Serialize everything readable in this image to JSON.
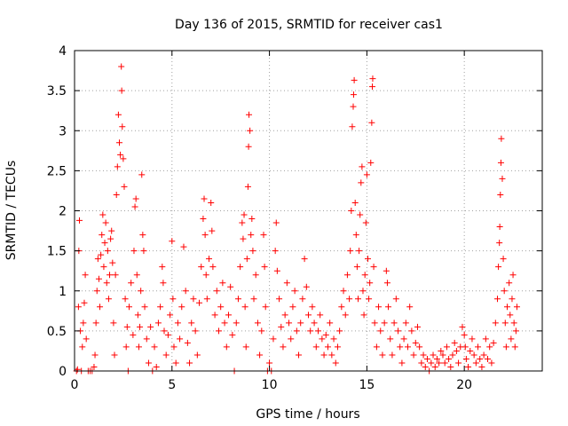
{
  "chart_data": {
    "type": "scatter",
    "title": "Day 136 of 2015, SRMTID for receiver cas1",
    "xlabel": "GPS time / hours",
    "ylabel": "SRMTID / TECUs",
    "xlim": [
      0,
      24
    ],
    "ylim": [
      0,
      4
    ],
    "xticks": [
      0,
      5,
      10,
      15,
      20
    ],
    "yticks": [
      0,
      0.5,
      1,
      1.5,
      2,
      2.5,
      3,
      3.5,
      4
    ],
    "xtick_labels": [
      "0",
      "5",
      "10",
      "15",
      "20"
    ],
    "ytick_labels": [
      "0",
      "0.5",
      "1",
      "1.5",
      "2",
      "2.5",
      "3",
      "3.5",
      "4"
    ],
    "grid": true,
    "marker": "plus",
    "color": "#ff0000",
    "series": [
      {
        "name": "SRMTID",
        "points": [
          [
            0.1,
            0.0
          ],
          [
            0.15,
            0.02
          ],
          [
            0.2,
            0.8
          ],
          [
            0.22,
            1.5
          ],
          [
            0.25,
            1.88
          ],
          [
            0.3,
            0.5
          ],
          [
            0.35,
            0.0
          ],
          [
            0.4,
            0.3
          ],
          [
            0.45,
            0.6
          ],
          [
            0.5,
            0.85
          ],
          [
            0.55,
            1.2
          ],
          [
            0.6,
            0.4
          ],
          [
            0.7,
            0.0
          ],
          [
            0.8,
            0.0
          ],
          [
            0.9,
            0.0
          ],
          [
            1.0,
            0.05
          ],
          [
            1.05,
            0.2
          ],
          [
            1.1,
            0.6
          ],
          [
            1.15,
            1.0
          ],
          [
            1.2,
            1.4
          ],
          [
            1.25,
            1.15
          ],
          [
            1.3,
            0.8
          ],
          [
            1.35,
            1.45
          ],
          [
            1.4,
            1.7
          ],
          [
            1.45,
            1.95
          ],
          [
            1.5,
            1.3
          ],
          [
            1.55,
            1.6
          ],
          [
            1.6,
            1.85
          ],
          [
            1.65,
            1.1
          ],
          [
            1.7,
            1.5
          ],
          [
            1.75,
            0.9
          ],
          [
            1.8,
            1.2
          ],
          [
            1.85,
            1.65
          ],
          [
            1.9,
            1.75
          ],
          [
            1.95,
            1.35
          ],
          [
            2.0,
            0.6
          ],
          [
            2.05,
            0.2
          ],
          [
            2.1,
            1.2
          ],
          [
            2.15,
            2.2
          ],
          [
            2.2,
            2.55
          ],
          [
            2.25,
            3.2
          ],
          [
            2.3,
            2.85
          ],
          [
            2.35,
            2.7
          ],
          [
            2.4,
            3.8
          ],
          [
            2.42,
            3.5
          ],
          [
            2.45,
            3.05
          ],
          [
            2.5,
            2.65
          ],
          [
            2.55,
            2.3
          ],
          [
            2.6,
            0.9
          ],
          [
            2.65,
            0.3
          ],
          [
            2.7,
            0.55
          ],
          [
            2.75,
            0.0
          ],
          [
            2.8,
            0.8
          ],
          [
            2.9,
            1.1
          ],
          [
            3.0,
            0.45
          ],
          [
            3.05,
            1.5
          ],
          [
            3.1,
            2.05
          ],
          [
            3.15,
            2.15
          ],
          [
            3.2,
            1.2
          ],
          [
            3.25,
            0.7
          ],
          [
            3.3,
            0.3
          ],
          [
            3.35,
            0.55
          ],
          [
            3.4,
            1.0
          ],
          [
            3.45,
            2.45
          ],
          [
            3.5,
            1.7
          ],
          [
            3.55,
            1.5
          ],
          [
            3.6,
            0.8
          ],
          [
            3.7,
            0.4
          ],
          [
            3.8,
            0.1
          ],
          [
            3.9,
            0.55
          ],
          [
            4.0,
            0.0
          ],
          [
            4.1,
            0.3
          ],
          [
            4.2,
            0.05
          ],
          [
            4.3,
            0.6
          ],
          [
            4.4,
            0.8
          ],
          [
            4.5,
            1.3
          ],
          [
            4.55,
            1.1
          ],
          [
            4.6,
            0.5
          ],
          [
            4.7,
            0.2
          ],
          [
            4.8,
            0.45
          ],
          [
            4.9,
            0.7
          ],
          [
            5.0,
            1.62
          ],
          [
            5.05,
            0.9
          ],
          [
            5.1,
            0.3
          ],
          [
            5.2,
            0.1
          ],
          [
            5.3,
            0.6
          ],
          [
            5.4,
            0.4
          ],
          [
            5.5,
            0.8
          ],
          [
            5.6,
            1.55
          ],
          [
            5.7,
            1.0
          ],
          [
            5.8,
            0.35
          ],
          [
            5.9,
            0.1
          ],
          [
            6.0,
            0.6
          ],
          [
            6.1,
            0.9
          ],
          [
            6.2,
            0.5
          ],
          [
            6.3,
            0.2
          ],
          [
            6.4,
            0.85
          ],
          [
            6.5,
            1.3
          ],
          [
            6.6,
            1.9
          ],
          [
            6.65,
            2.15
          ],
          [
            6.7,
            1.7
          ],
          [
            6.75,
            1.2
          ],
          [
            6.8,
            0.9
          ],
          [
            6.9,
            1.4
          ],
          [
            7.0,
            2.1
          ],
          [
            7.05,
            1.75
          ],
          [
            7.1,
            1.3
          ],
          [
            7.2,
            0.7
          ],
          [
            7.3,
            1.0
          ],
          [
            7.4,
            0.5
          ],
          [
            7.5,
            0.8
          ],
          [
            7.6,
            1.1
          ],
          [
            7.7,
            0.6
          ],
          [
            7.8,
            0.3
          ],
          [
            7.9,
            0.7
          ],
          [
            8.0,
            1.05
          ],
          [
            8.1,
            0.45
          ],
          [
            8.2,
            0.0
          ],
          [
            8.3,
            0.6
          ],
          [
            8.4,
            0.9
          ],
          [
            8.5,
            1.3
          ],
          [
            8.6,
            1.85
          ],
          [
            8.65,
            1.65
          ],
          [
            8.7,
            1.95
          ],
          [
            8.75,
            0.8
          ],
          [
            8.8,
            0.3
          ],
          [
            8.85,
            1.4
          ],
          [
            8.9,
            2.3
          ],
          [
            8.93,
            2.8
          ],
          [
            8.95,
            3.2
          ],
          [
            9.0,
            3.0
          ],
          [
            9.05,
            1.7
          ],
          [
            9.1,
            1.9
          ],
          [
            9.15,
            1.5
          ],
          [
            9.2,
            0.9
          ],
          [
            9.3,
            1.2
          ],
          [
            9.4,
            0.6
          ],
          [
            9.5,
            0.2
          ],
          [
            9.6,
            0.5
          ],
          [
            9.7,
            1.7
          ],
          [
            9.75,
            1.3
          ],
          [
            9.8,
            0.8
          ],
          [
            9.9,
            0.0
          ],
          [
            10.0,
            0.1
          ],
          [
            10.1,
            0.0
          ],
          [
            10.2,
            0.4
          ],
          [
            10.3,
            1.5
          ],
          [
            10.35,
            1.85
          ],
          [
            10.4,
            1.25
          ],
          [
            10.5,
            0.9
          ],
          [
            10.6,
            0.55
          ],
          [
            10.7,
            0.3
          ],
          [
            10.8,
            0.7
          ],
          [
            10.9,
            1.1
          ],
          [
            11.0,
            0.6
          ],
          [
            11.1,
            0.4
          ],
          [
            11.2,
            0.8
          ],
          [
            11.3,
            1.0
          ],
          [
            11.4,
            0.5
          ],
          [
            11.5,
            0.2
          ],
          [
            11.6,
            0.6
          ],
          [
            11.7,
            0.9
          ],
          [
            11.8,
            1.4
          ],
          [
            11.9,
            1.05
          ],
          [
            12.0,
            0.7
          ],
          [
            12.1,
            0.5
          ],
          [
            12.2,
            0.8
          ],
          [
            12.3,
            0.6
          ],
          [
            12.4,
            0.3
          ],
          [
            12.5,
            0.5
          ],
          [
            12.6,
            0.7
          ],
          [
            12.7,
            0.4
          ],
          [
            12.8,
            0.2
          ],
          [
            12.9,
            0.45
          ],
          [
            13.0,
            0.3
          ],
          [
            13.1,
            0.6
          ],
          [
            13.2,
            0.2
          ],
          [
            13.3,
            0.4
          ],
          [
            13.4,
            0.1
          ],
          [
            13.5,
            0.3
          ],
          [
            13.6,
            0.5
          ],
          [
            13.7,
            0.8
          ],
          [
            13.8,
            1.0
          ],
          [
            13.9,
            0.7
          ],
          [
            14.0,
            1.2
          ],
          [
            14.1,
            0.9
          ],
          [
            14.15,
            1.5
          ],
          [
            14.2,
            2.0
          ],
          [
            14.25,
            3.05
          ],
          [
            14.3,
            3.3
          ],
          [
            14.32,
            3.45
          ],
          [
            14.35,
            3.63
          ],
          [
            14.4,
            2.1
          ],
          [
            14.45,
            1.7
          ],
          [
            14.5,
            1.3
          ],
          [
            14.55,
            0.9
          ],
          [
            14.6,
            1.5
          ],
          [
            14.65,
            1.95
          ],
          [
            14.7,
            2.35
          ],
          [
            14.75,
            2.55
          ],
          [
            14.8,
            1.0
          ],
          [
            14.85,
            0.7
          ],
          [
            14.9,
            1.2
          ],
          [
            14.95,
            1.85
          ],
          [
            15.0,
            2.45
          ],
          [
            15.05,
            1.4
          ],
          [
            15.1,
            0.9
          ],
          [
            15.15,
            1.1
          ],
          [
            15.2,
            2.6
          ],
          [
            15.25,
            3.1
          ],
          [
            15.28,
            3.55
          ],
          [
            15.3,
            3.65
          ],
          [
            15.35,
            1.3
          ],
          [
            15.4,
            0.6
          ],
          [
            15.5,
            0.3
          ],
          [
            15.6,
            0.8
          ],
          [
            15.7,
            0.5
          ],
          [
            15.8,
            0.2
          ],
          [
            15.9,
            0.6
          ],
          [
            16.0,
            1.25
          ],
          [
            16.05,
            1.1
          ],
          [
            16.1,
            0.8
          ],
          [
            16.2,
            0.4
          ],
          [
            16.3,
            0.2
          ],
          [
            16.4,
            0.6
          ],
          [
            16.5,
            0.9
          ],
          [
            16.6,
            0.5
          ],
          [
            16.7,
            0.3
          ],
          [
            16.8,
            0.1
          ],
          [
            16.9,
            0.4
          ],
          [
            17.0,
            0.6
          ],
          [
            17.1,
            0.3
          ],
          [
            17.2,
            0.8
          ],
          [
            17.3,
            0.5
          ],
          [
            17.4,
            0.2
          ],
          [
            17.5,
            0.35
          ],
          [
            17.6,
            0.55
          ],
          [
            17.7,
            0.3
          ],
          [
            17.8,
            0.1
          ],
          [
            17.9,
            0.2
          ],
          [
            18.0,
            0.05
          ],
          [
            18.1,
            0.15
          ],
          [
            18.2,
            0.0
          ],
          [
            18.3,
            0.1
          ],
          [
            18.4,
            0.2
          ],
          [
            18.5,
            0.05
          ],
          [
            18.6,
            0.15
          ],
          [
            18.7,
            0.1
          ],
          [
            18.8,
            0.25
          ],
          [
            18.9,
            0.2
          ],
          [
            19.0,
            0.1
          ],
          [
            19.1,
            0.3
          ],
          [
            19.2,
            0.15
          ],
          [
            19.3,
            0.05
          ],
          [
            19.4,
            0.2
          ],
          [
            19.5,
            0.35
          ],
          [
            19.6,
            0.25
          ],
          [
            19.7,
            0.1
          ],
          [
            19.8,
            0.3
          ],
          [
            19.9,
            0.55
          ],
          [
            20.0,
            0.45
          ],
          [
            20.05,
            0.3
          ],
          [
            20.1,
            0.15
          ],
          [
            20.2,
            0.05
          ],
          [
            20.3,
            0.25
          ],
          [
            20.4,
            0.4
          ],
          [
            20.5,
            0.2
          ],
          [
            20.6,
            0.1
          ],
          [
            20.7,
            0.3
          ],
          [
            20.8,
            0.15
          ],
          [
            20.9,
            0.05
          ],
          [
            21.0,
            0.2
          ],
          [
            21.1,
            0.4
          ],
          [
            21.2,
            0.15
          ],
          [
            21.3,
            0.3
          ],
          [
            21.4,
            0.1
          ],
          [
            21.5,
            0.35
          ],
          [
            21.6,
            0.6
          ],
          [
            21.7,
            0.9
          ],
          [
            21.75,
            1.3
          ],
          [
            21.8,
            1.6
          ],
          [
            21.82,
            1.8
          ],
          [
            21.85,
            2.2
          ],
          [
            21.88,
            2.6
          ],
          [
            21.9,
            2.9
          ],
          [
            21.95,
            2.4
          ],
          [
            22.0,
            1.4
          ],
          [
            22.05,
            1.0
          ],
          [
            22.1,
            0.6
          ],
          [
            22.15,
            0.3
          ],
          [
            22.2,
            0.8
          ],
          [
            22.3,
            1.1
          ],
          [
            22.35,
            0.7
          ],
          [
            22.4,
            0.4
          ],
          [
            22.45,
            0.9
          ],
          [
            22.5,
            1.2
          ],
          [
            22.55,
            0.6
          ],
          [
            22.6,
            0.3
          ],
          [
            22.65,
            0.5
          ],
          [
            22.7,
            0.8
          ]
        ]
      }
    ]
  }
}
